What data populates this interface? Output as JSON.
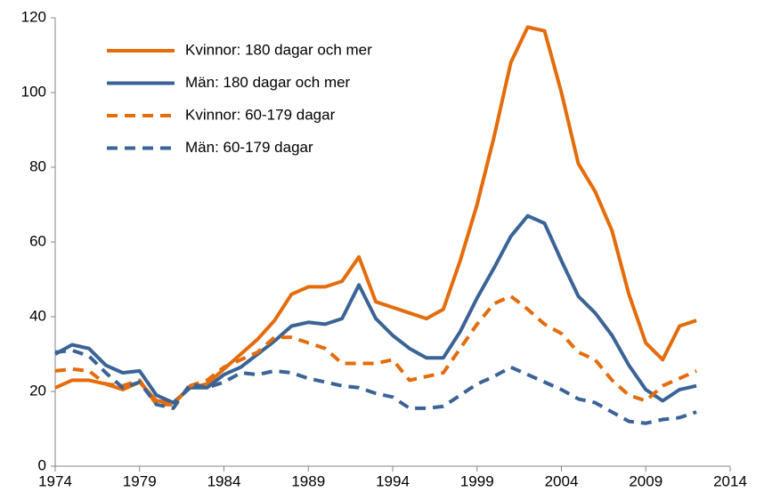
{
  "chart_data": {
    "type": "line",
    "x": [
      1974,
      1975,
      1976,
      1977,
      1978,
      1979,
      1980,
      1981,
      1982,
      1983,
      1984,
      1985,
      1986,
      1987,
      1988,
      1989,
      1990,
      1991,
      1992,
      1993,
      1994,
      1995,
      1996,
      1997,
      1998,
      1999,
      2000,
      2001,
      2002,
      2003,
      2004,
      2005,
      2006,
      2007,
      2008,
      2009,
      2010,
      2011,
      2012
    ],
    "series": [
      {
        "name": "Kvinnor: 180 dagar och mer",
        "color": "#e46c0a",
        "dashed": false,
        "values": [
          21,
          23,
          23,
          22,
          20.5,
          22.5,
          17.5,
          17,
          21,
          22,
          26,
          30,
          34,
          39,
          46,
          48,
          48,
          49.5,
          56,
          44,
          42.5,
          41,
          39.5,
          42,
          55,
          70,
          88,
          108,
          117.5,
          116.5,
          100,
          81,
          73.5,
          63,
          46,
          33,
          28.5,
          37.5,
          39
        ]
      },
      {
        "name": "Män: 180 dagar och mer",
        "color": "#3a6496",
        "dashed": false,
        "values": [
          30,
          32.5,
          31.5,
          27,
          25,
          25.5,
          19,
          17,
          21,
          21,
          24.5,
          26.5,
          30,
          33.5,
          37.5,
          38.5,
          38,
          39.5,
          48.5,
          39.5,
          35,
          31.5,
          29,
          29,
          36,
          45,
          53,
          61.5,
          67,
          65,
          55,
          45.5,
          41,
          35,
          27,
          20.5,
          17.5,
          20.5,
          21.5
        ]
      },
      {
        "name": "Kvinnor: 60-179 dagar",
        "color": "#e46c0a",
        "dashed": true,
        "values": [
          25.5,
          26,
          25.5,
          22,
          21.5,
          23,
          16.5,
          16.5,
          21.5,
          23,
          26.5,
          28.5,
          30.5,
          34.5,
          34.5,
          33,
          31.5,
          27.5,
          27.5,
          27.5,
          28.5,
          23,
          24,
          25,
          31.5,
          38,
          43.5,
          45.5,
          42,
          38,
          35.5,
          30.5,
          28.5,
          23,
          19,
          17.5,
          21.5,
          23.5,
          25.5
        ]
      },
      {
        "name": "Män: 60-179 dagar",
        "color": "#3a6496",
        "dashed": true,
        "values": [
          30.5,
          31,
          29.5,
          25,
          21,
          22.5,
          16.5,
          15.5,
          22,
          21,
          22.5,
          25,
          24.5,
          25.5,
          25,
          23.5,
          22.5,
          21.5,
          21,
          19.5,
          18.5,
          15.5,
          15.5,
          16,
          19,
          22,
          24,
          26.5,
          24.5,
          22.5,
          20.5,
          18,
          17,
          14.5,
          12,
          11.5,
          12.5,
          13,
          14.5
        ]
      }
    ],
    "xlim": [
      1974,
      2014
    ],
    "xticks": [
      1974,
      1979,
      1984,
      1989,
      1994,
      1999,
      2004,
      2009,
      2014
    ],
    "ylim": [
      0,
      120
    ],
    "yticks": [
      0,
      20,
      40,
      60,
      80,
      100,
      120
    ],
    "grid": false,
    "legend": "upper-left"
  }
}
